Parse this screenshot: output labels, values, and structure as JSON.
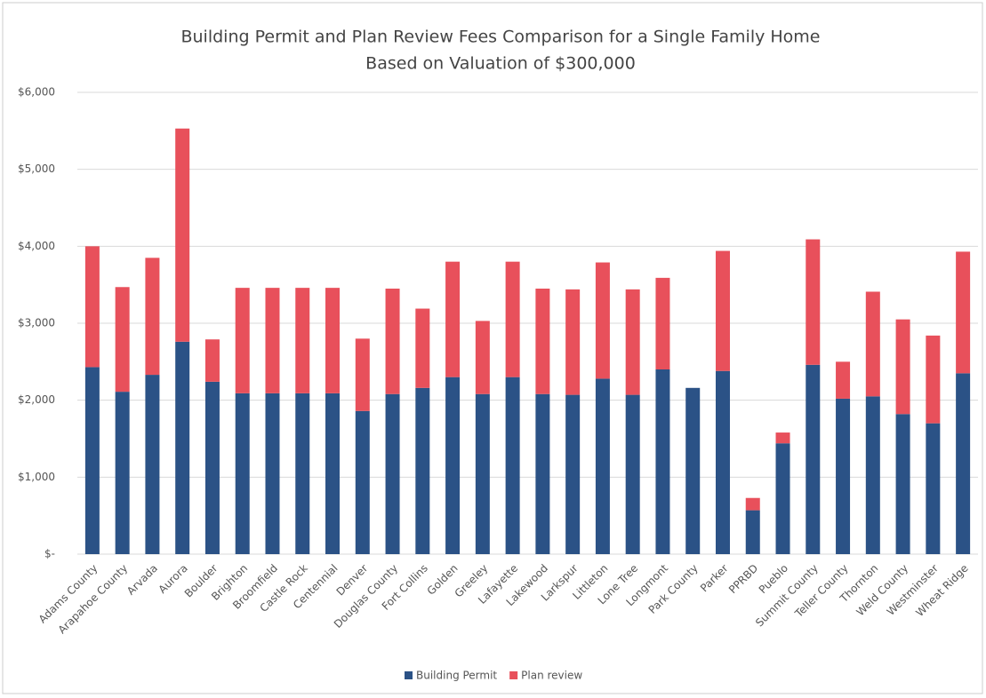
{
  "chart_data": {
    "type": "stacked_bar",
    "title": "Building Permit and Plan Review Fees Comparison for a Single Family Home",
    "subtitle": "Based on Valuation of $300,000",
    "categories": [
      "Adams County",
      "Arapahoe County",
      "Arvada",
      "Aurora",
      "Boulder",
      "Brighton",
      "Broomfield",
      "Castle Rock",
      "Centennial",
      "Denver",
      "Douglas County",
      "Fort Collins",
      "Golden",
      "Greeley",
      "Lafayette",
      "Lakewood",
      "Larkspur",
      "Littleton",
      "Lone Tree",
      "Longmont",
      "Park County",
      "Parker",
      "PPRBD",
      "Pueblo",
      "Summit County",
      "Teller County",
      "Thornton",
      "Weld County",
      "Westminster",
      "Wheat Ridge"
    ],
    "series": [
      {
        "name": "Building Permit",
        "color": "#2b5286",
        "values": [
          2430,
          2110,
          2330,
          2760,
          2240,
          2090,
          2090,
          2090,
          2090,
          1860,
          2080,
          2160,
          2300,
          2080,
          2300,
          2080,
          2070,
          2280,
          2070,
          2400,
          2160,
          2380,
          570,
          1440,
          2460,
          2020,
          2050,
          1820,
          1700,
          2350
        ]
      },
      {
        "name": "Plan review",
        "color": "#e8505b",
        "values": [
          1570,
          1360,
          1520,
          2770,
          550,
          1370,
          1370,
          1370,
          1370,
          940,
          1370,
          1030,
          1500,
          950,
          1500,
          1370,
          1370,
          1510,
          1370,
          1190,
          0,
          1560,
          160,
          140,
          1630,
          480,
          1360,
          1230,
          1140,
          1580
        ]
      }
    ],
    "ylim": [
      0,
      6000
    ],
    "yticks": [
      {
        "value": 0,
        "label": "$-"
      },
      {
        "value": 1000,
        "label": "$1,000"
      },
      {
        "value": 2000,
        "label": "$2,000"
      },
      {
        "value": 3000,
        "label": "$3,000"
      },
      {
        "value": 4000,
        "label": "$4,000"
      },
      {
        "value": 5000,
        "label": "$5,000"
      },
      {
        "value": 6000,
        "label": "$6,000"
      }
    ],
    "grid": true,
    "legend": "bottom"
  }
}
